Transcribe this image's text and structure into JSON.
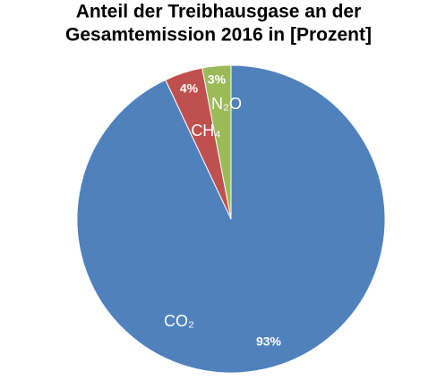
{
  "chart_data": {
    "type": "pie",
    "title": [
      "Anteil der Treibhausgase an der",
      "Gesamtemission 2016 in [Prozent]"
    ],
    "categories": [
      "CO₂",
      "CH₄",
      "N₂O"
    ],
    "values": [
      93,
      4,
      3
    ],
    "value_labels": [
      "93%",
      "4%",
      "3%"
    ],
    "colors": [
      "#4f81bd",
      "#c0504d",
      "#9bbb59"
    ]
  }
}
